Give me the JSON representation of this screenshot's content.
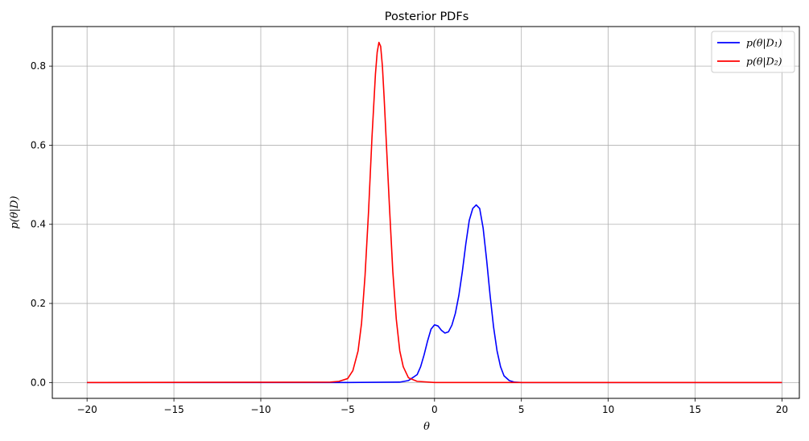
{
  "chart_data": {
    "type": "line",
    "title": "Posterior PDFs",
    "xlabel": "θ",
    "ylabel": "p(θ|D)",
    "xlim": [
      -22,
      21
    ],
    "ylim": [
      -0.04,
      0.9
    ],
    "xticks": [
      -20,
      -15,
      -10,
      -5,
      0,
      5,
      10,
      15,
      20
    ],
    "yticks": [
      0.0,
      0.2,
      0.4,
      0.6,
      0.8
    ],
    "xtick_labels": [
      "−20",
      "−15",
      "−10",
      "−5",
      "0",
      "5",
      "10",
      "15",
      "20"
    ],
    "ytick_labels": [
      "0.0",
      "0.2",
      "0.4",
      "0.6",
      "0.8"
    ],
    "grid": true,
    "legend_position": "top-right",
    "series": [
      {
        "name": "p(θ|D₁)",
        "color": "#0000ff",
        "x": [
          -20,
          -5,
          -2.0,
          -1.5,
          -1.0,
          -0.8,
          -0.6,
          -0.4,
          -0.2,
          0.0,
          0.2,
          0.4,
          0.6,
          0.8,
          1.0,
          1.2,
          1.4,
          1.6,
          1.8,
          2.0,
          2.2,
          2.4,
          2.6,
          2.8,
          3.0,
          3.2,
          3.4,
          3.6,
          3.8,
          4.0,
          4.3,
          4.6,
          5.0,
          6,
          20
        ],
        "y": [
          0.0,
          0.0,
          0.001,
          0.005,
          0.02,
          0.04,
          0.07,
          0.105,
          0.135,
          0.146,
          0.143,
          0.132,
          0.125,
          0.128,
          0.145,
          0.175,
          0.22,
          0.28,
          0.35,
          0.41,
          0.44,
          0.449,
          0.44,
          0.39,
          0.31,
          0.22,
          0.14,
          0.08,
          0.04,
          0.017,
          0.005,
          0.001,
          0.0,
          0.0,
          0.0
        ]
      },
      {
        "name": "p(θ|D₂)",
        "color": "#ff0000",
        "x": [
          -20,
          -6.0,
          -5.5,
          -5.0,
          -4.7,
          -4.4,
          -4.2,
          -4.0,
          -3.8,
          -3.6,
          -3.4,
          -3.3,
          -3.2,
          -3.1,
          -3.0,
          -2.9,
          -2.8,
          -2.6,
          -2.4,
          -2.2,
          -2.0,
          -1.8,
          -1.5,
          -1.0,
          0,
          5,
          20
        ],
        "y": [
          0.0,
          0.001,
          0.003,
          0.01,
          0.03,
          0.08,
          0.15,
          0.27,
          0.43,
          0.62,
          0.78,
          0.835,
          0.86,
          0.85,
          0.8,
          0.72,
          0.63,
          0.45,
          0.28,
          0.16,
          0.08,
          0.04,
          0.012,
          0.003,
          0.0,
          0.0,
          0.0
        ]
      }
    ]
  }
}
